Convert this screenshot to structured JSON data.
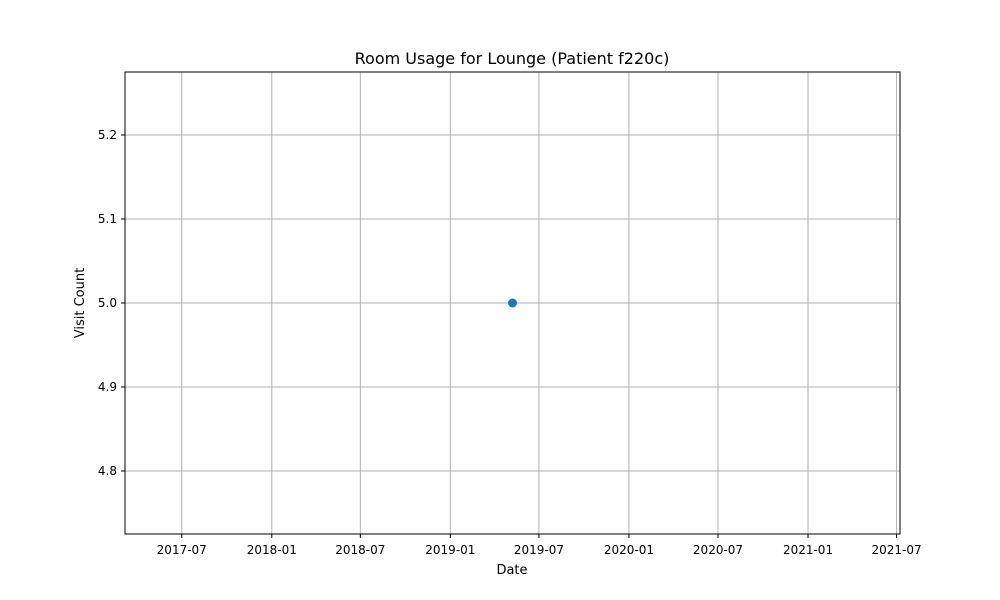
{
  "chart_data": {
    "type": "scatter",
    "title": "Room Usage for Lounge (Patient f220c)",
    "xlabel": "Date",
    "ylabel": "Visit Count",
    "x_ticks": [
      "2017-07",
      "2018-01",
      "2018-07",
      "2019-01",
      "2019-07",
      "2020-01",
      "2020-07",
      "2021-01",
      "2021-07"
    ],
    "y_ticks": [
      "4.8",
      "4.9",
      "5.0",
      "5.1",
      "5.2"
    ],
    "xlim": [
      "2017-03-07",
      "2021-07-08"
    ],
    "ylim": [
      4.725,
      5.275
    ],
    "grid": true,
    "series": [
      {
        "color": "#1f77b4",
        "points": [
          {
            "x": "2019-05-08",
            "y": 5.0
          }
        ]
      }
    ]
  }
}
